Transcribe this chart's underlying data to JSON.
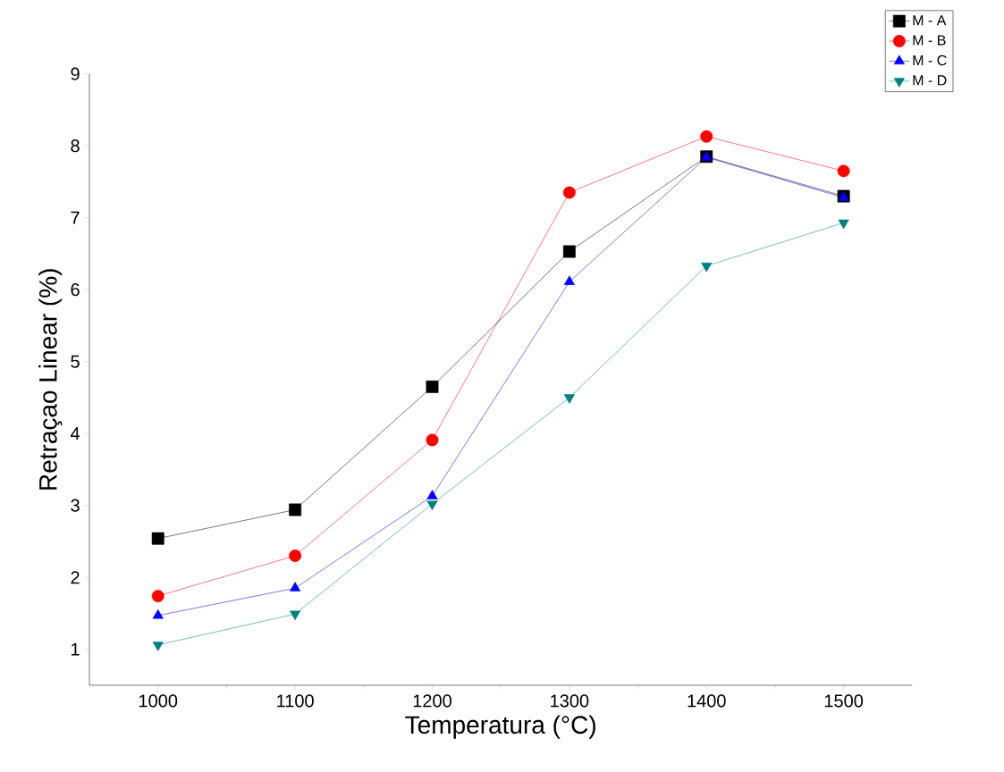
{
  "chart_data": {
    "type": "line",
    "xlabel": "Temperatura (°C)",
    "ylabel": "Retraçao Linear (%)",
    "x": [
      1000,
      1100,
      1200,
      1300,
      1400,
      1500
    ],
    "series": [
      {
        "name": "M - A",
        "color": "#000000",
        "marker": "square",
        "values": [
          2.54,
          2.94,
          4.65,
          6.53,
          7.85,
          7.3
        ]
      },
      {
        "name": "M - B",
        "color": "#ff0000",
        "marker": "circle",
        "values": [
          1.74,
          2.3,
          3.91,
          7.35,
          8.13,
          7.65
        ]
      },
      {
        "name": "M - C",
        "color": "#0000ff",
        "marker": "triangle",
        "values": [
          1.47,
          1.85,
          3.13,
          6.11,
          7.84,
          7.28
        ]
      },
      {
        "name": "M - D",
        "color": "#008080",
        "marker": "triangle-down",
        "values": [
          1.06,
          1.49,
          3.02,
          4.5,
          6.33,
          6.93
        ]
      }
    ],
    "xlim": [
      950,
      1550
    ],
    "ylim": [
      0.5,
      9
    ],
    "xticks": [
      1000,
      1100,
      1200,
      1300,
      1400,
      1500
    ],
    "yticks": [
      1,
      2,
      3,
      4,
      5,
      6,
      7,
      8,
      9
    ],
    "grid": false,
    "legend": "top right",
    "line_style": "solid"
  }
}
